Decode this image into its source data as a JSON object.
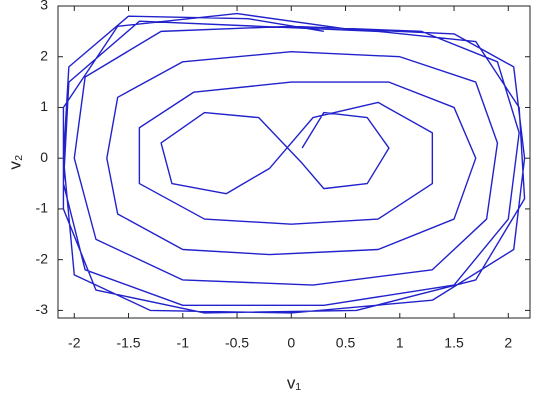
{
  "chart_data": {
    "type": "line",
    "xlabel": "v₁",
    "ylabel": "v₂",
    "xlim": [
      -2.15,
      2.2
    ],
    "ylim": [
      -3.15,
      3
    ],
    "xticks": [
      -2,
      -1.5,
      -1,
      -0.5,
      0,
      0.5,
      1,
      1.5,
      2
    ],
    "yticks": [
      -3,
      -2,
      -1,
      0,
      1,
      2,
      3
    ],
    "grid": false,
    "series": [
      {
        "color": "#2222cc",
        "x": [
          0.1,
          0.3,
          0.7,
          0.9,
          0.7,
          0.3,
          0.1,
          -0.3,
          -0.8,
          -1.2,
          -1.1,
          -0.6,
          -0.2,
          0.2,
          0.8,
          1.3,
          1.3,
          0.8,
          0,
          -0.8,
          -1.4,
          -1.4,
          -0.9,
          0,
          0.9,
          1.5,
          1.7,
          1.5,
          0.8,
          -0.2,
          -1,
          -1.6,
          -1.7,
          -1.6,
          -1,
          0,
          1,
          1.7,
          1.9,
          1.8,
          1.3,
          0.2,
          -1,
          -1.8,
          -2,
          -1.9,
          -1.2,
          0,
          1.2,
          1.9,
          2.1,
          2.0,
          1.5,
          0.3,
          -1.0,
          -1.9,
          -2.1,
          -2.05,
          -1.4,
          -0.3,
          0.8,
          1.7,
          2.1,
          2.15,
          1.7,
          0.6,
          -0.8,
          -1.8,
          -2.1,
          -2.1,
          -1.6,
          -0.5,
          0.5,
          1.5,
          2.05,
          2.15,
          2.05,
          1.3,
          0,
          -1.3,
          -2.0,
          -2.1,
          -2.05,
          -1.5,
          -0.4,
          0.3
        ],
        "values": [
          0.2,
          0.9,
          0.8,
          0.2,
          -0.5,
          -0.6,
          -0.1,
          0.8,
          0.9,
          0.3,
          -0.5,
          -0.7,
          -0.2,
          0.8,
          1.1,
          0.5,
          -0.5,
          -1.2,
          -1.3,
          -1.2,
          -0.5,
          0.6,
          1.3,
          1.5,
          1.5,
          1,
          0,
          -1.2,
          -1.8,
          -1.9,
          -1.8,
          -1.1,
          0,
          1.2,
          1.9,
          2.1,
          2.0,
          1.5,
          0.3,
          -1.2,
          -2.2,
          -2.5,
          -2.4,
          -1.6,
          0,
          1.6,
          2.5,
          2.6,
          2.5,
          1.9,
          0.5,
          -1.2,
          -2.5,
          -2.9,
          -2.9,
          -2.2,
          -0.5,
          1.5,
          2.7,
          2.6,
          2.5,
          2.3,
          1.0,
          -0.8,
          -2.4,
          -3.0,
          -3.05,
          -2.6,
          -1.0,
          1.0,
          2.6,
          2.85,
          2.55,
          2.45,
          1.8,
          0,
          -1.8,
          -2.8,
          -3.05,
          -3.0,
          -2.3,
          0,
          1.8,
          2.8,
          2.75,
          2.5
        ]
      }
    ]
  }
}
